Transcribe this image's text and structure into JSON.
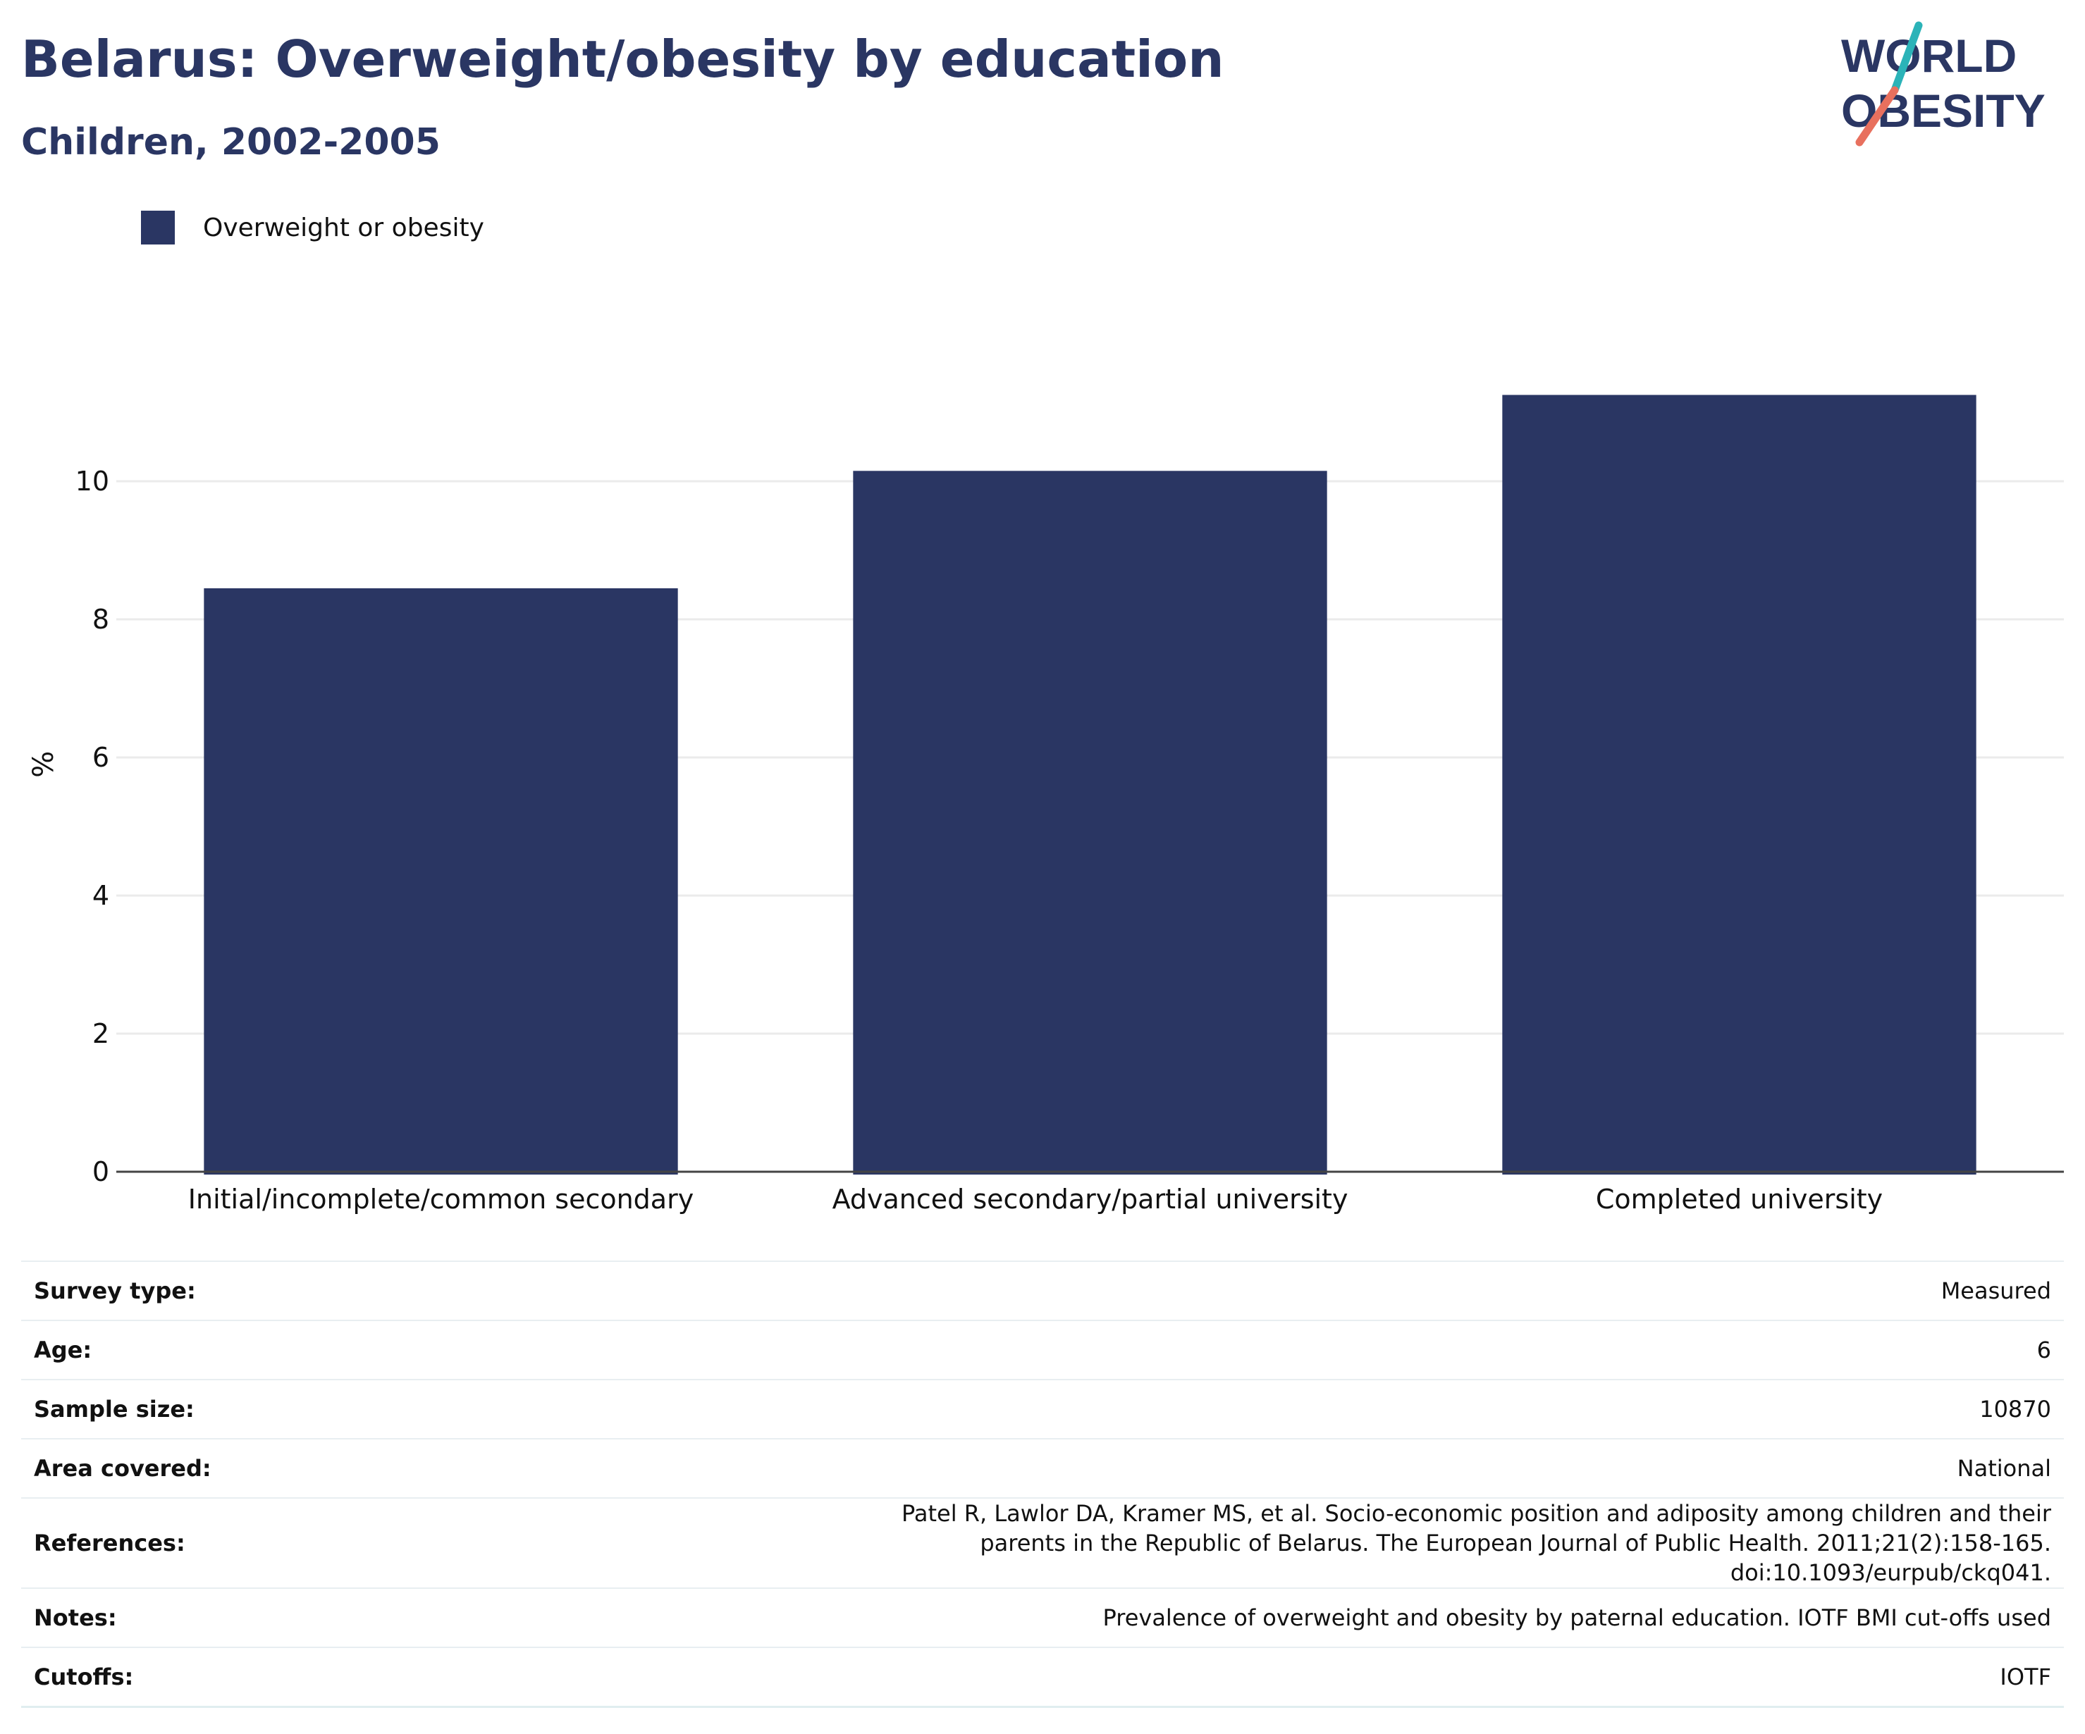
{
  "title": "Belarus: Overweight/obesity by education",
  "subtitle": "Children, 2002-2005",
  "logo": {
    "line1": "WORLD",
    "line2": "OBESITY",
    "colors": {
      "text": "#2a3663",
      "slash_top": "#2bb3b8",
      "slash_bottom": "#e8705e"
    }
  },
  "legend": {
    "items": [
      {
        "label": "Overweight or obesity",
        "color": "#2a3663"
      }
    ]
  },
  "chart_data": {
    "type": "bar",
    "categories": [
      "Initial/incomplete/common secondary",
      "Advanced secondary/partial university",
      "Completed university"
    ],
    "series": [
      {
        "name": "Overweight or obesity",
        "values": [
          8.45,
          10.15,
          11.25
        ],
        "color": "#2a3663"
      }
    ],
    "ylabel": "%",
    "ylim": [
      0,
      12
    ],
    "yticks": [
      0,
      2,
      4,
      6,
      8,
      10
    ],
    "grid": true
  },
  "info": [
    {
      "label": "Survey type:",
      "value": "Measured"
    },
    {
      "label": "Age:",
      "value": "6"
    },
    {
      "label": "Sample size:",
      "value": "10870"
    },
    {
      "label": "Area covered:",
      "value": "National"
    },
    {
      "label": "References:",
      "value": "Patel R, Lawlor DA, Kramer MS, et al. Socio-economic position and adiposity among children and their parents in the Republic of Belarus. The European Journal of Public Health. 2011;21(2):158-165. doi:10.1093/eurpub/ckq041."
    },
    {
      "label": "Notes:",
      "value": "Prevalence of overweight and obesity by paternal education. IOTF BMI cut-offs used"
    },
    {
      "label": "Cutoffs:",
      "value": "IOTF"
    }
  ]
}
